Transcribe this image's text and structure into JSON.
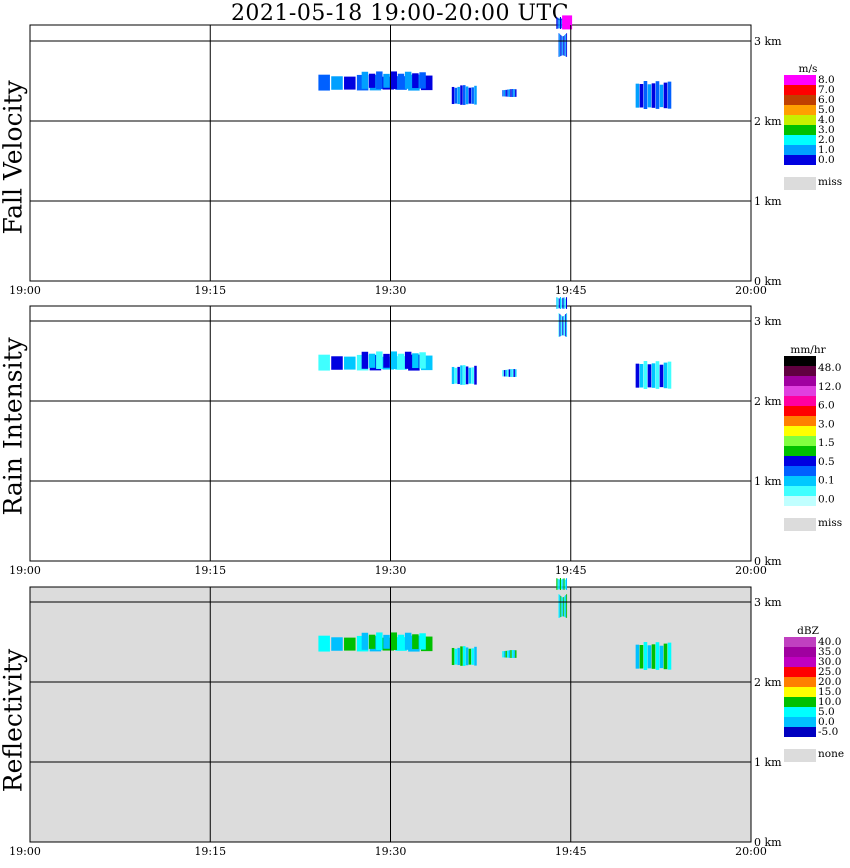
{
  "title": "2021-05-18   19:00-20:00 UTC",
  "colors": {
    "plot_bg_reflectivity": "#dcdcdc",
    "grid": "#000000"
  },
  "chart_data": [
    {
      "type": "heatmap",
      "panel": "Fall Velocity",
      "unit": "m/s",
      "x_ticks": [
        "19:00",
        "19:15",
        "19:30",
        "19:45",
        "20:00"
      ],
      "y_ticks": [
        "0 km",
        "1 km",
        "2 km",
        "3 km"
      ],
      "xlim": [
        "19:00",
        "20:00"
      ],
      "ylim_km": [
        0,
        3.2
      ],
      "colorbar": {
        "labels": [
          "8.0",
          "7.0",
          "6.0",
          "5.0",
          "4.0",
          "3.0",
          "2.0",
          "1.0",
          "0.0"
        ],
        "colors": [
          "#ff00ff",
          "#ff0000",
          "#c04000",
          "#ffa000",
          "#c8f000",
          "#00c000",
          "#00ffff",
          "#00a0ff",
          "#0000e0"
        ],
        "miss_label": "miss",
        "miss_color": "#dcdcdc"
      }
    },
    {
      "type": "heatmap",
      "panel": "Rain Intensity",
      "unit": "mm/hr",
      "x_ticks": [
        "19:00",
        "19:15",
        "19:30",
        "19:45",
        "20:00"
      ],
      "y_ticks": [
        "0 km",
        "1 km",
        "2 km",
        "3 km"
      ],
      "xlim": [
        "19:00",
        "20:00"
      ],
      "ylim_km": [
        0,
        3.2
      ],
      "colorbar": {
        "labels": [
          "48.0",
          "12.0",
          "6.0",
          "3.0",
          "1.5",
          "0.5",
          "0.1",
          "0.0"
        ],
        "colors": [
          "#000000",
          "#600040",
          "#a000a0",
          "#e040e0",
          "#ff00a0",
          "#ff0000",
          "#ff8000",
          "#ffff00",
          "#80ff40",
          "#00c000",
          "#0000e0",
          "#0060ff",
          "#00c8ff",
          "#40ffff",
          "#c0ffff"
        ],
        "miss_label": "miss",
        "miss_color": "#dcdcdc"
      }
    },
    {
      "type": "heatmap",
      "panel": "Reflectivity",
      "unit": "dBZ",
      "x_ticks": [
        "19:00",
        "19:15",
        "19:30",
        "19:45",
        "20:00"
      ],
      "y_ticks": [
        "0 km",
        "1 km",
        "2 km",
        "3 km"
      ],
      "xlim": [
        "19:00",
        "20:00"
      ],
      "ylim_km": [
        0,
        3.2
      ],
      "colorbar": {
        "labels": [
          "40.0",
          "35.0",
          "30.0",
          "25.0",
          "20.0",
          "15.0",
          "10.0",
          "5.0",
          "0.0",
          "-5.0"
        ],
        "colors": [
          "#c040c0",
          "#a000a0",
          "#c000c0",
          "#ff0000",
          "#ff8000",
          "#ffff00",
          "#00c000",
          "#00ffff",
          "#00c0ff",
          "#0000c0"
        ],
        "miss_label": "none",
        "miss_color": "#dcdcdc"
      }
    }
  ]
}
